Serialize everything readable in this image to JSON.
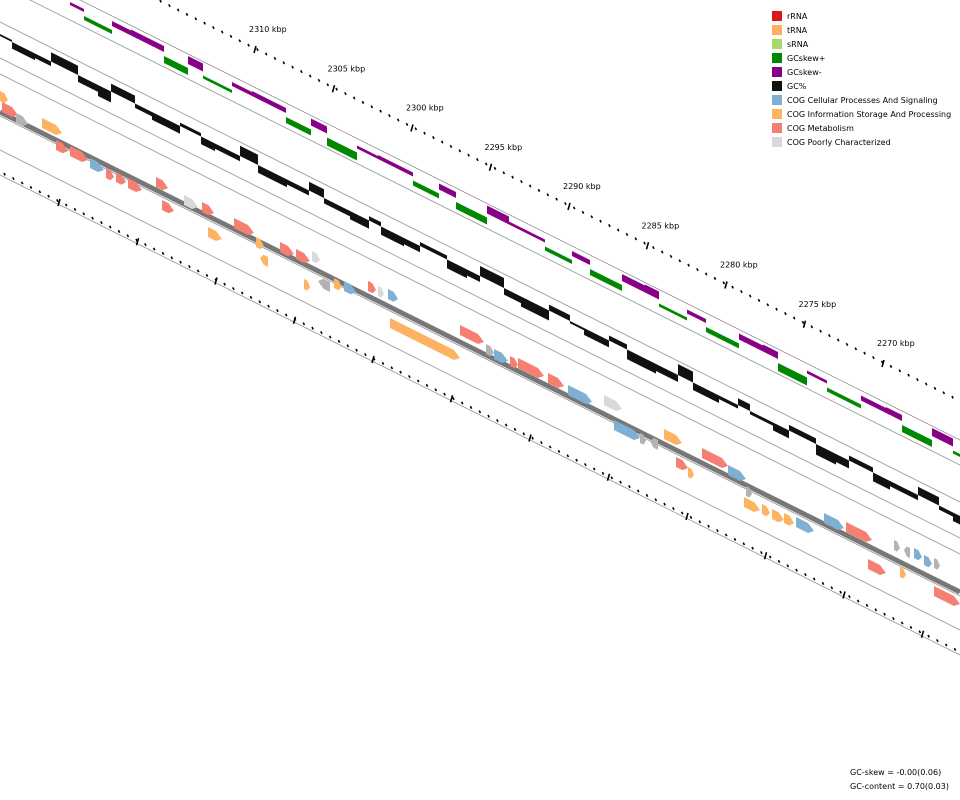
{
  "legend": [
    {
      "label": "rRNA",
      "color": "#d7191c",
      "icon": "swatch-rrna"
    },
    {
      "label": "tRNA",
      "color": "#fdae61",
      "icon": "swatch-trna"
    },
    {
      "label": "sRNA",
      "color": "#a6d96a",
      "icon": "swatch-srna"
    },
    {
      "label": "GCskew+",
      "color": "#008800",
      "icon": "swatch-gcskew-plus"
    },
    {
      "label": "GCskew-",
      "color": "#880088",
      "icon": "swatch-gcskew-minus"
    },
    {
      "label": "GC%",
      "color": "#111111",
      "icon": "swatch-gc-percent"
    },
    {
      "label": "COG Cellular Processes And Signaling",
      "color": "#7fafd3",
      "icon": "swatch-cog-cellular"
    },
    {
      "label": "COG Information Storage And Processing",
      "color": "#fdb462",
      "icon": "swatch-cog-information"
    },
    {
      "label": "COG Metabolism",
      "color": "#f58072",
      "icon": "swatch-cog-metabolism"
    },
    {
      "label": "COG Poorly Characterized",
      "color": "#d9d9d9",
      "icon": "swatch-cog-poorly"
    }
  ],
  "scale_labels": [
    {
      "kbp": 2310,
      "label": "2310 kbp"
    },
    {
      "kbp": 2305,
      "label": "2305 kbp"
    },
    {
      "kbp": 2300,
      "label": "2300 kbp"
    },
    {
      "kbp": 2295,
      "label": "2295 kbp"
    },
    {
      "kbp": 2290,
      "label": "2290 kbp"
    },
    {
      "kbp": 2285,
      "label": "2285 kbp"
    },
    {
      "kbp": 2280,
      "label": "2280 kbp"
    },
    {
      "kbp": 2275,
      "label": "2275 kbp"
    },
    {
      "kbp": 2270,
      "label": "2270 kbp"
    }
  ],
  "stats": {
    "gc_skew": "GC-skew = -0.00(0.06)",
    "gc_content": "GC-content = 0.70(0.03)"
  }
}
